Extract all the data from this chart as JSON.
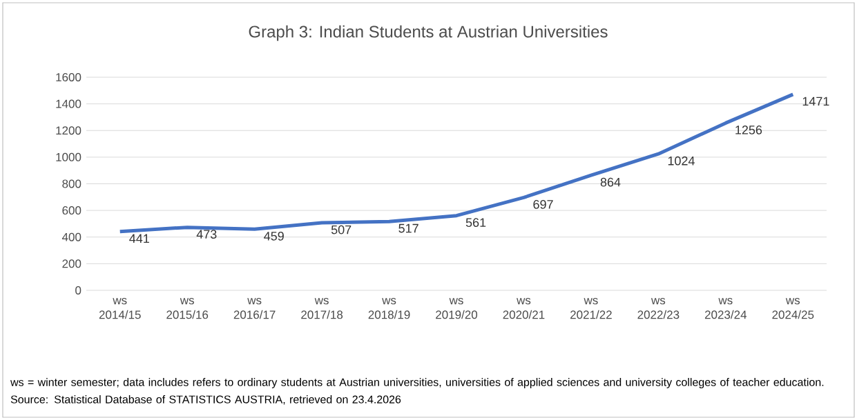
{
  "chart_data": {
    "type": "line",
    "title": "Graph 3: Indian Students at Austrian Universities",
    "categories": [
      "ws 2014/15",
      "ws 2015/16",
      "ws 2016/17",
      "ws 2017/18",
      "ws 2018/19",
      "ws 2019/20",
      "ws 2020/21",
      "ws 2021/22",
      "ws 2022/23",
      "ws 2023/24",
      "ws 2024/25"
    ],
    "values": [
      441,
      473,
      459,
      507,
      517,
      561,
      697,
      864,
      1024,
      1256,
      1471
    ],
    "color": "#4472c4",
    "marker": "none",
    "line_style": "solid",
    "ylim": [
      0,
      1600
    ],
    "yticks": [
      0,
      200,
      400,
      600,
      800,
      1000,
      1200,
      1400,
      1600
    ],
    "grid": "y",
    "data_labels": true,
    "annotations": [
      "ws = winter semester; data includes refers to ordinary students at Austrian universities, universities of applied sciences and university colleges of teacher education. Source: Statistical Database of STATISTICS AUSTRIA, retrieved on 23.4.2026"
    ]
  }
}
